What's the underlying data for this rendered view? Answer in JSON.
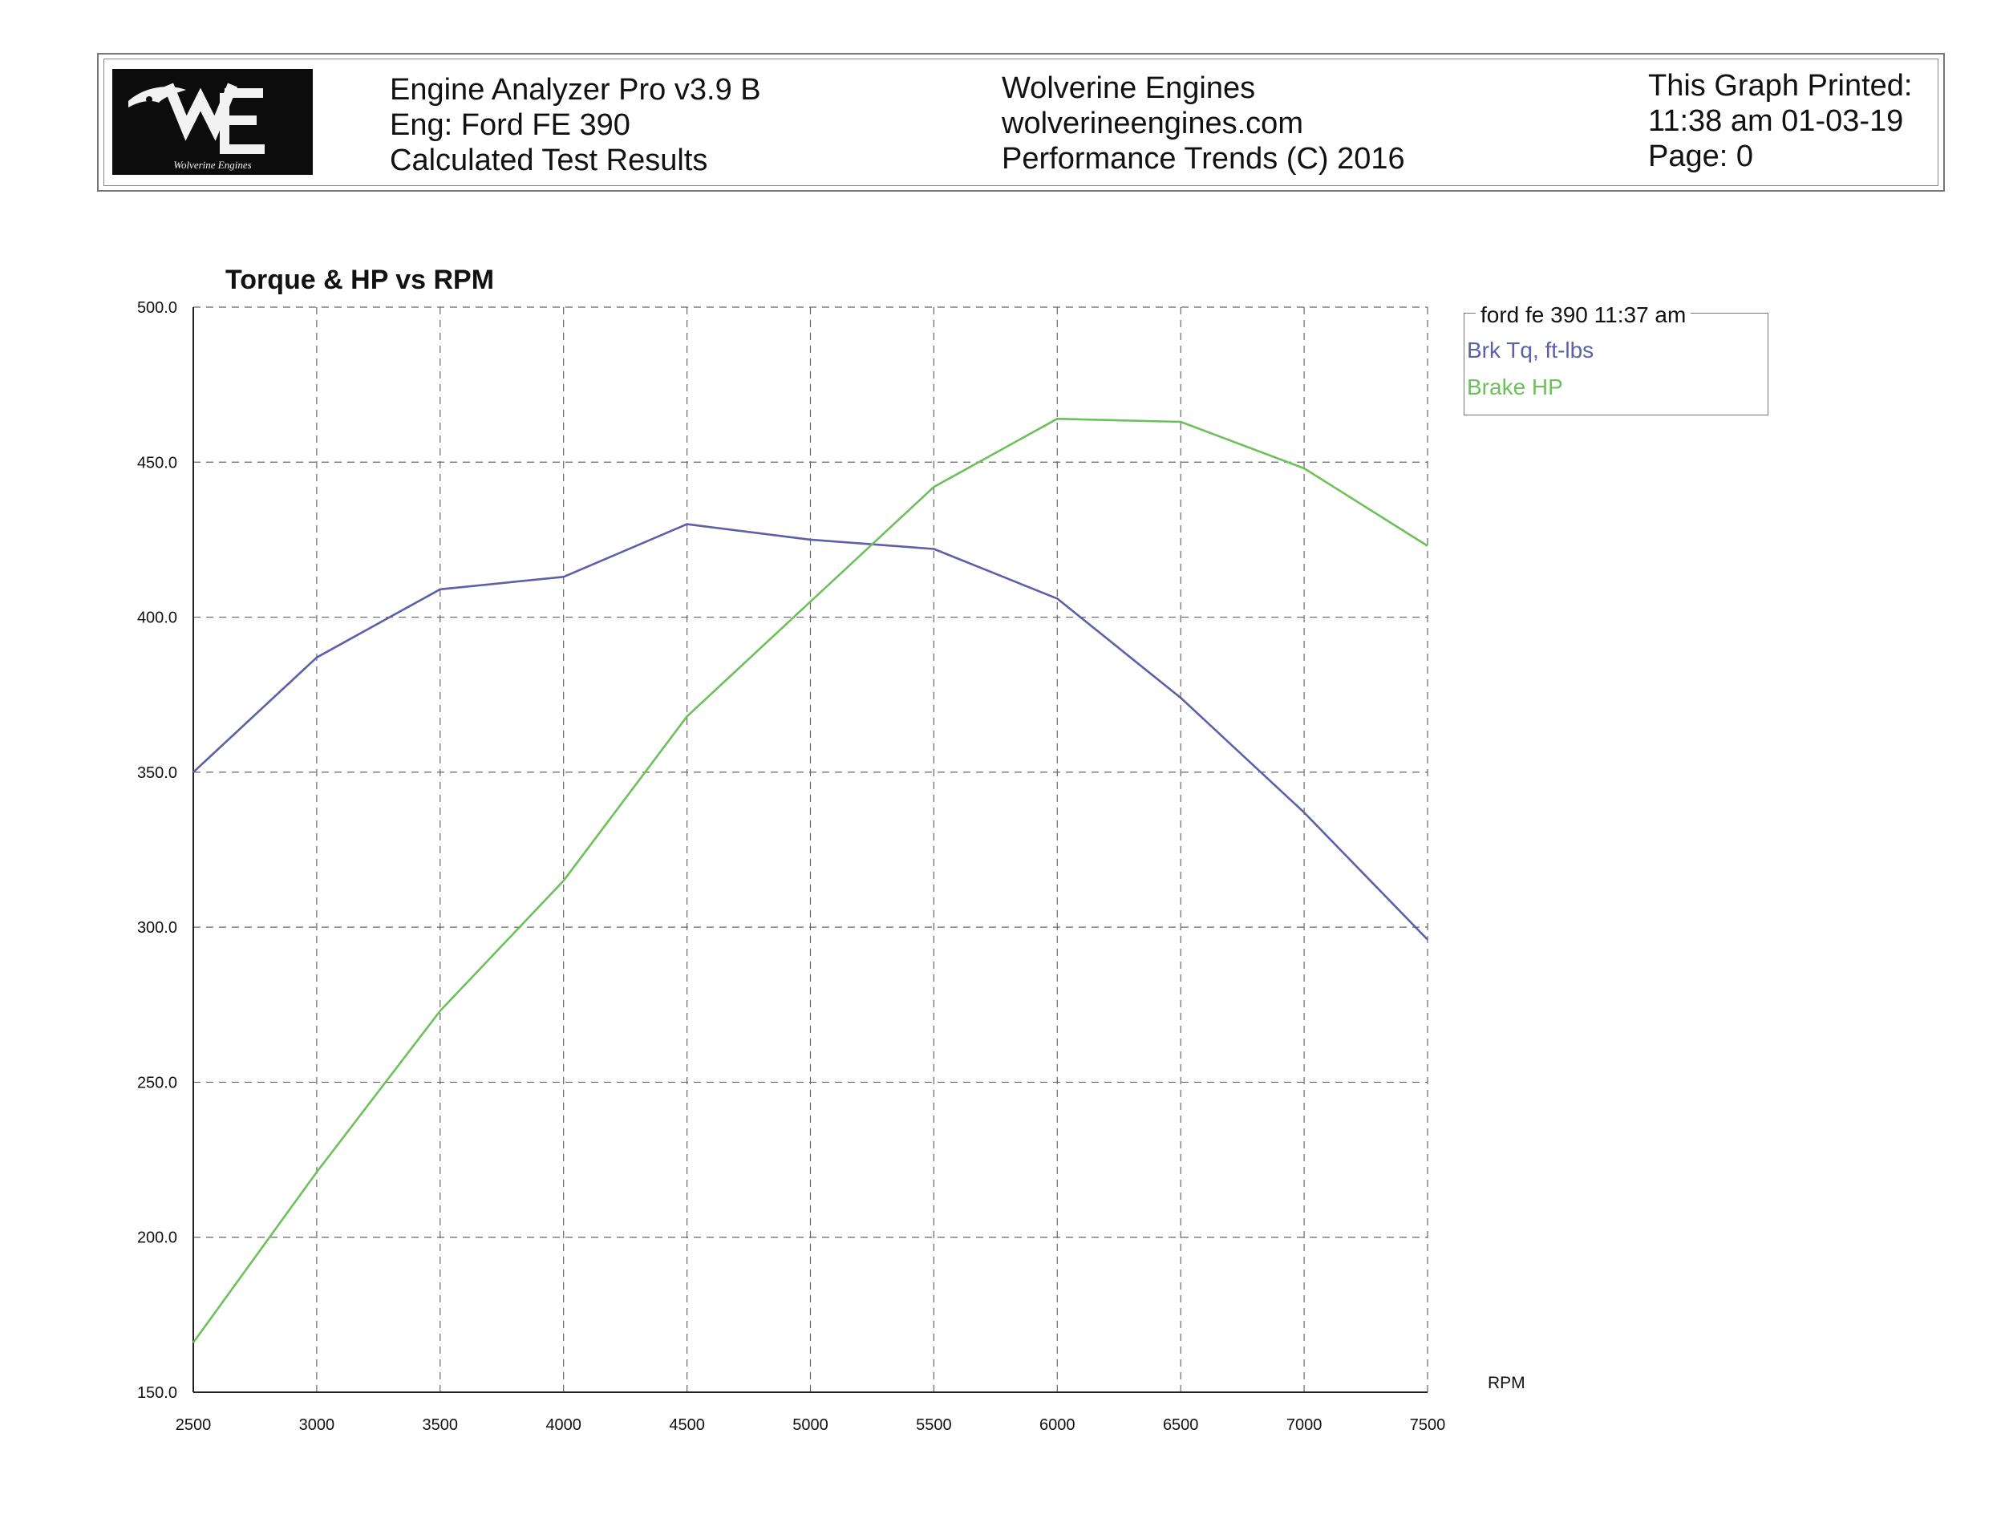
{
  "header": {
    "logo_text": "Wolverine Engines",
    "left": [
      "Engine Analyzer Pro v3.9 B",
      "Eng: Ford FE 390",
      "Calculated Test Results"
    ],
    "middle": [
      "Wolverine Engines",
      "wolverineengines.com",
      "Performance Trends (C) 2016"
    ],
    "right": [
      "This Graph Printed:",
      "11:38 am 01-03-19",
      "Page: 0"
    ]
  },
  "legend": {
    "title": "ford fe 390 11:37 am",
    "items": [
      "Brk Tq, ft-lbs",
      "Brake HP"
    ]
  },
  "colors": {
    "torque": "#5b61a8",
    "hp": "#6cc15a"
  },
  "chart_data": {
    "type": "line",
    "title": "Torque & HP vs RPM",
    "xlabel": "RPM",
    "ylabel": "",
    "x": [
      2500,
      3000,
      3500,
      4000,
      4500,
      5000,
      5500,
      6000,
      6500,
      7000,
      7500
    ],
    "xlim": [
      2500,
      7500
    ],
    "ylim": [
      150,
      500
    ],
    "x_ticks": [
      "2500",
      "3000",
      "3500",
      "4000",
      "4500",
      "5000",
      "5500",
      "6000",
      "6500",
      "7000",
      "7500"
    ],
    "y_ticks": [
      "150.0",
      "200.0",
      "250.0",
      "300.0",
      "350.0",
      "400.0",
      "450.0",
      "500.0"
    ],
    "grid": true,
    "legend_position": "top-right, outside plot",
    "series": [
      {
        "name": "Brk Tq, ft-lbs",
        "values": [
          350,
          387,
          409,
          413,
          430,
          425,
          422,
          406,
          374,
          337,
          296
        ]
      },
      {
        "name": "Brake HP",
        "values": [
          166,
          221,
          273,
          315,
          368,
          405,
          442,
          464,
          463,
          448,
          423
        ]
      }
    ]
  }
}
